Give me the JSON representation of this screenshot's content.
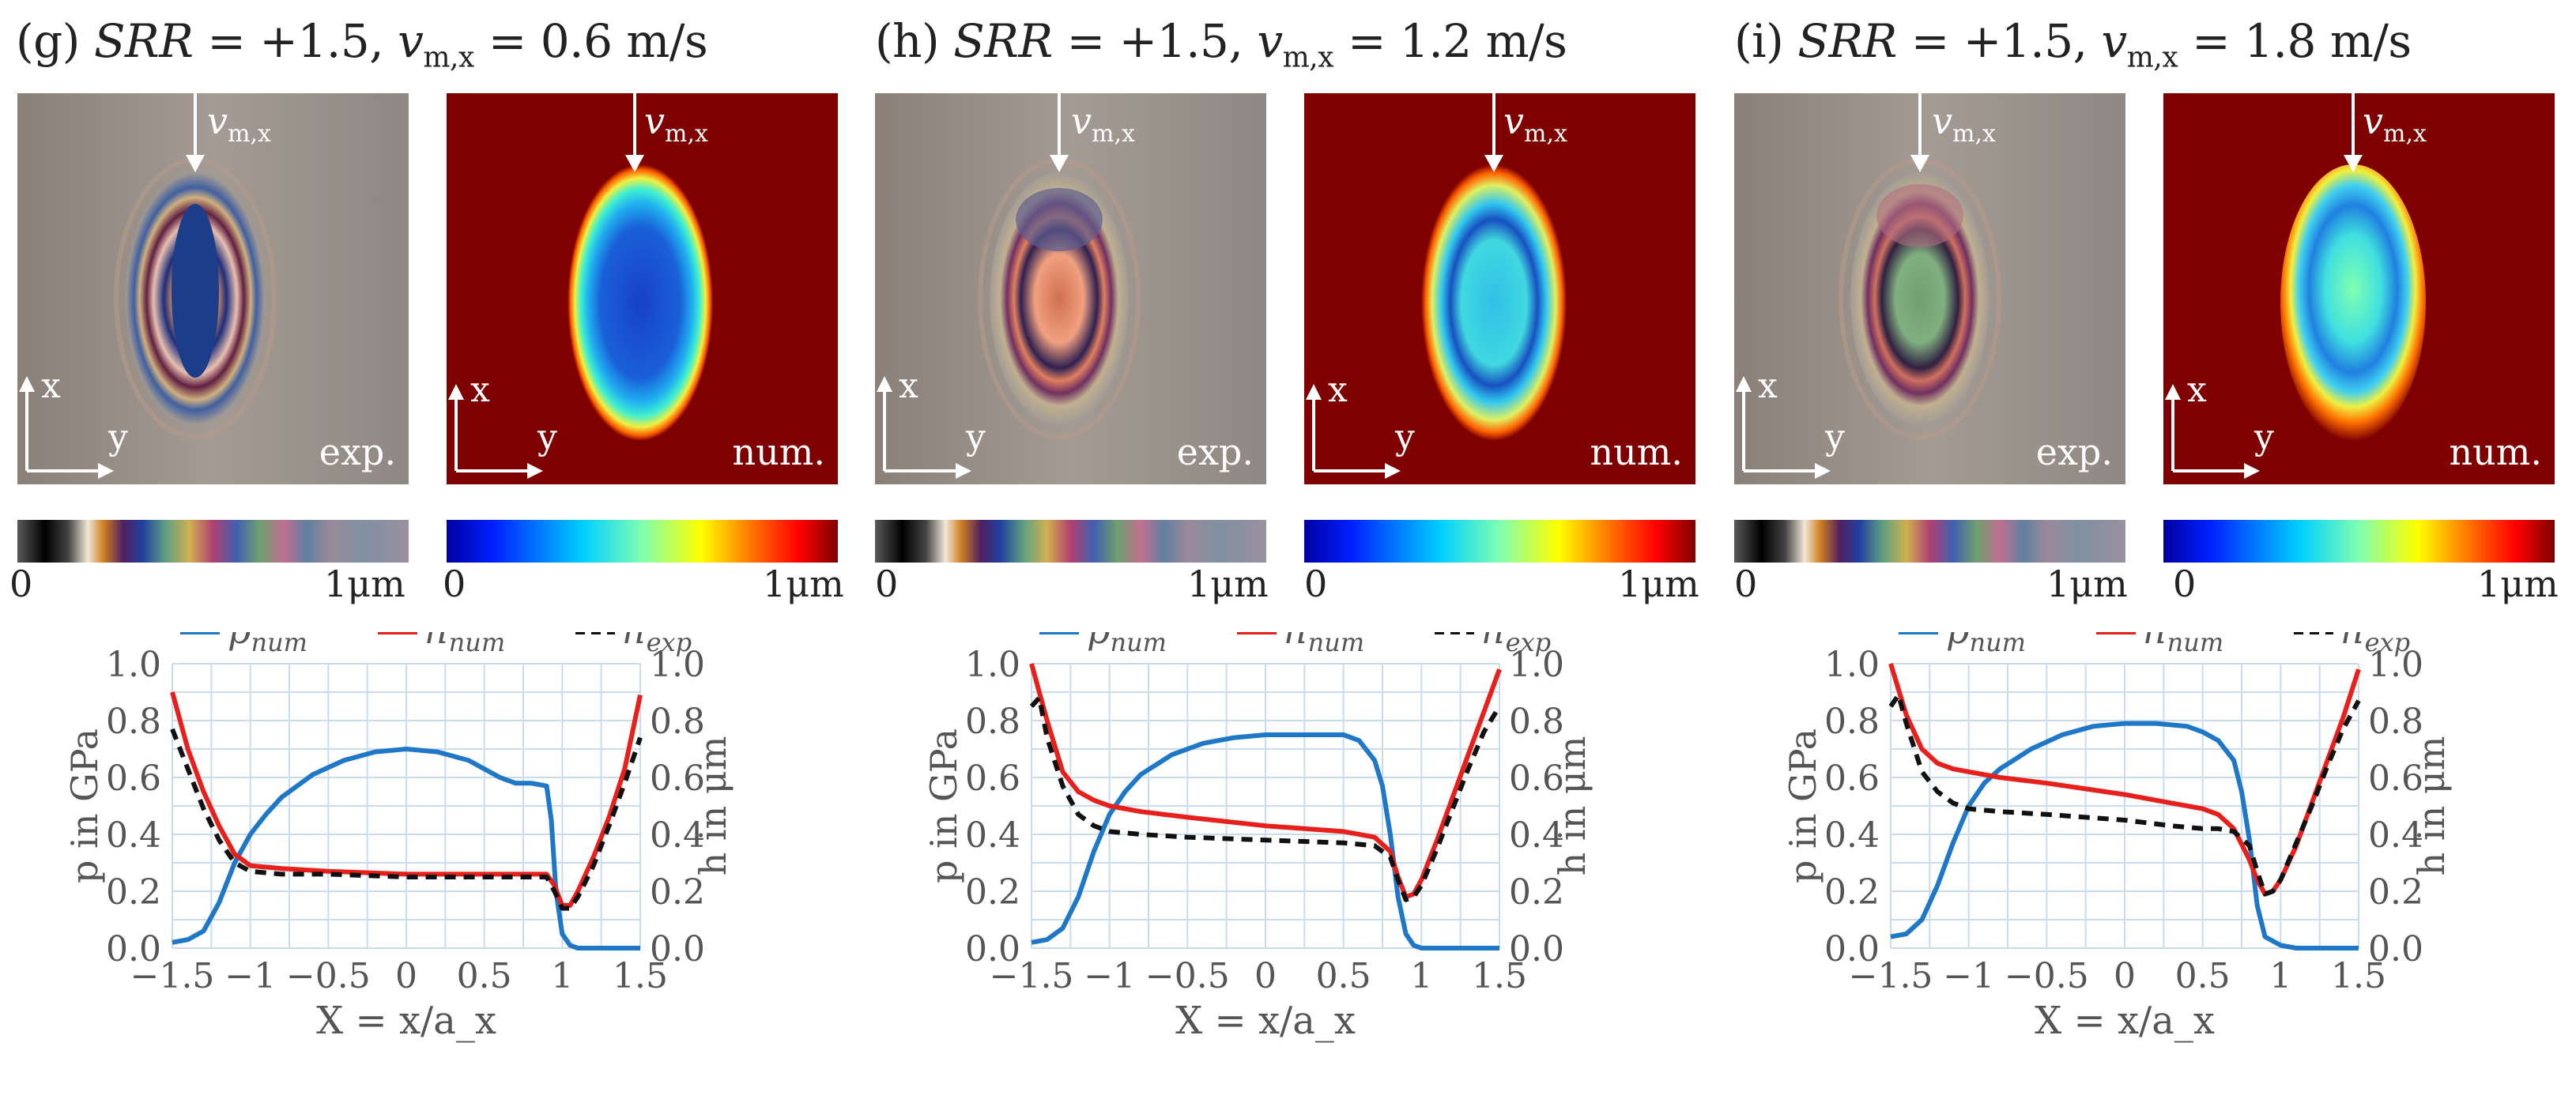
{
  "colors": {
    "p_num": "#1f77c8",
    "h_num": "#e8201c",
    "h_exp": "#111111",
    "grid": "#c9dcef",
    "axis_text": "#555555",
    "num_background": "#7f0000"
  },
  "panels": [
    {
      "title": {
        "letter": "(g)",
        "srr": "SRR",
        "eq1": "= +1.5,",
        "v": "v",
        "vsub": "m,x",
        "eq2": "= 0.6 m/s"
      },
      "exp_label": "exp.",
      "num_label": "num.",
      "arrow_label": {
        "v": "v",
        "sub": "m,x"
      },
      "axes_x": "x",
      "axes_y": "y",
      "colorbar": {
        "min": "0",
        "max": "1μm"
      }
    },
    {
      "title": {
        "letter": "(h)",
        "srr": "SRR",
        "eq1": "= +1.5,",
        "v": "v",
        "vsub": "m,x",
        "eq2": "= 1.2 m/s"
      },
      "exp_label": "exp.",
      "num_label": "num.",
      "arrow_label": {
        "v": "v",
        "sub": "m,x"
      },
      "axes_x": "x",
      "axes_y": "y",
      "colorbar": {
        "min": "0",
        "max": "1μm"
      }
    },
    {
      "title": {
        "letter": "(i)",
        "srr": "SRR",
        "eq1": "= +1.5,",
        "v": "v",
        "vsub": "m,x",
        "eq2": "= 1.8 m/s"
      },
      "exp_label": "exp.",
      "num_label": "num.",
      "arrow_label": {
        "v": "v",
        "sub": "m,x"
      },
      "axes_x": "x",
      "axes_y": "y",
      "colorbar": {
        "min": "0",
        "max": "1μm"
      }
    }
  ],
  "chart_data": [
    {
      "type": "line",
      "xlabel": "X = x/a_x",
      "ylabel_left": "p in GPa",
      "ylabel_right": "h in μm",
      "xlim": [
        -1.5,
        1.5
      ],
      "ylim": [
        0,
        1.0
      ],
      "xticks": [
        "−1.5",
        "−1",
        "−0.5",
        "0",
        "0.5",
        "1",
        "1.5"
      ],
      "yticks": [
        "0.0",
        "0.2",
        "0.4",
        "0.6",
        "0.8",
        "1.0"
      ],
      "legend": [
        "p_num",
        "h_num",
        "h_exp"
      ],
      "series": [
        {
          "name": "p_num",
          "x": [
            -1.5,
            -1.4,
            -1.3,
            -1.2,
            -1.1,
            -1.0,
            -0.9,
            -0.8,
            -0.6,
            -0.4,
            -0.2,
            0,
            0.2,
            0.4,
            0.6,
            0.7,
            0.8,
            0.9,
            0.93,
            0.96,
            1.0,
            1.05,
            1.1,
            1.2,
            1.3,
            1.5
          ],
          "y": [
            0.02,
            0.03,
            0.06,
            0.16,
            0.3,
            0.4,
            0.47,
            0.53,
            0.61,
            0.66,
            0.69,
            0.7,
            0.69,
            0.66,
            0.6,
            0.58,
            0.58,
            0.57,
            0.45,
            0.2,
            0.05,
            0.01,
            0,
            0,
            0,
            0
          ]
        },
        {
          "name": "h_num",
          "x": [
            -1.5,
            -1.4,
            -1.3,
            -1.2,
            -1.1,
            -1.0,
            -0.8,
            -0.5,
            0,
            0.5,
            0.8,
            0.9,
            0.95,
            1.0,
            1.05,
            1.1,
            1.2,
            1.3,
            1.4,
            1.5
          ],
          "y": [
            0.9,
            0.7,
            0.55,
            0.43,
            0.33,
            0.29,
            0.28,
            0.27,
            0.26,
            0.26,
            0.26,
            0.26,
            0.22,
            0.15,
            0.15,
            0.2,
            0.32,
            0.46,
            0.63,
            0.89
          ]
        },
        {
          "name": "h_exp",
          "x": [
            -1.5,
            -1.4,
            -1.3,
            -1.2,
            -1.1,
            -1.0,
            -0.8,
            -0.5,
            0,
            0.5,
            0.8,
            0.9,
            0.95,
            1.0,
            1.05,
            1.1,
            1.2,
            1.3,
            1.4,
            1.5
          ],
          "y": [
            0.77,
            0.63,
            0.49,
            0.38,
            0.3,
            0.27,
            0.26,
            0.26,
            0.25,
            0.25,
            0.25,
            0.25,
            0.2,
            0.14,
            0.14,
            0.18,
            0.29,
            0.43,
            0.58,
            0.74
          ]
        }
      ]
    },
    {
      "type": "line",
      "xlabel": "X = x/a_x",
      "ylabel_left": "p in GPa",
      "ylabel_right": "h in μm",
      "xlim": [
        -1.5,
        1.5
      ],
      "ylim": [
        0,
        1.0
      ],
      "xticks": [
        "−1.5",
        "−1",
        "−0.5",
        "0",
        "0.5",
        "1",
        "1.5"
      ],
      "yticks": [
        "0.0",
        "0.2",
        "0.4",
        "0.6",
        "0.8",
        "1.0"
      ],
      "legend": [
        "p_num",
        "h_num",
        "h_exp"
      ],
      "series": [
        {
          "name": "p_num",
          "x": [
            -1.5,
            -1.4,
            -1.3,
            -1.2,
            -1.1,
            -1.0,
            -0.9,
            -0.8,
            -0.6,
            -0.4,
            -0.2,
            0,
            0.2,
            0.4,
            0.5,
            0.6,
            0.7,
            0.75,
            0.8,
            0.85,
            0.9,
            0.95,
            1.0,
            1.1,
            1.2,
            1.5
          ],
          "y": [
            0.02,
            0.03,
            0.07,
            0.18,
            0.34,
            0.47,
            0.55,
            0.61,
            0.68,
            0.72,
            0.74,
            0.75,
            0.75,
            0.75,
            0.75,
            0.73,
            0.66,
            0.57,
            0.4,
            0.18,
            0.05,
            0.01,
            0,
            0,
            0,
            0
          ]
        },
        {
          "name": "h_num",
          "x": [
            -1.5,
            -1.4,
            -1.3,
            -1.2,
            -1.1,
            -1.0,
            -0.8,
            -0.5,
            0,
            0.5,
            0.7,
            0.8,
            0.85,
            0.9,
            0.95,
            1.0,
            1.1,
            1.2,
            1.3,
            1.4,
            1.5
          ],
          "y": [
            1.0,
            0.8,
            0.62,
            0.55,
            0.52,
            0.5,
            0.48,
            0.46,
            0.43,
            0.41,
            0.39,
            0.34,
            0.25,
            0.18,
            0.19,
            0.24,
            0.38,
            0.53,
            0.68,
            0.83,
            0.98
          ]
        },
        {
          "name": "h_exp",
          "x": [
            -1.5,
            -1.45,
            -1.4,
            -1.3,
            -1.2,
            -1.1,
            -1.0,
            -0.8,
            -0.5,
            0,
            0.5,
            0.7,
            0.8,
            0.85,
            0.9,
            0.95,
            1.0,
            1.1,
            1.2,
            1.3,
            1.4,
            1.5
          ],
          "y": [
            0.85,
            0.88,
            0.74,
            0.57,
            0.47,
            0.43,
            0.41,
            0.4,
            0.39,
            0.38,
            0.37,
            0.36,
            0.32,
            0.24,
            0.17,
            0.18,
            0.22,
            0.35,
            0.49,
            0.63,
            0.76,
            0.85
          ]
        }
      ]
    },
    {
      "type": "line",
      "xlabel": "X = x/a_x",
      "ylabel_left": "p in GPa",
      "ylabel_right": "h in μm",
      "xlim": [
        -1.5,
        1.5
      ],
      "ylim": [
        0,
        1.0
      ],
      "xticks": [
        "−1.5",
        "−1",
        "−0.5",
        "0",
        "0.5",
        "1",
        "1.5"
      ],
      "yticks": [
        "0.0",
        "0.2",
        "0.4",
        "0.6",
        "0.8",
        "1.0"
      ],
      "legend": [
        "p_num",
        "h_num",
        "h_exp"
      ],
      "series": [
        {
          "name": "p_num",
          "x": [
            -1.5,
            -1.4,
            -1.3,
            -1.2,
            -1.1,
            -1.0,
            -0.9,
            -0.8,
            -0.6,
            -0.4,
            -0.2,
            0,
            0.2,
            0.4,
            0.5,
            0.6,
            0.7,
            0.75,
            0.8,
            0.85,
            0.9,
            1.0,
            1.1,
            1.2,
            1.5
          ],
          "y": [
            0.04,
            0.05,
            0.1,
            0.22,
            0.37,
            0.5,
            0.58,
            0.63,
            0.7,
            0.75,
            0.78,
            0.79,
            0.79,
            0.78,
            0.76,
            0.73,
            0.66,
            0.55,
            0.38,
            0.15,
            0.04,
            0.01,
            0,
            0,
            0
          ]
        },
        {
          "name": "h_num",
          "x": [
            -1.5,
            -1.4,
            -1.3,
            -1.2,
            -1.1,
            -1.0,
            -0.8,
            -0.5,
            0,
            0.3,
            0.5,
            0.6,
            0.7,
            0.8,
            0.85,
            0.9,
            0.95,
            1.0,
            1.1,
            1.2,
            1.3,
            1.4,
            1.5
          ],
          "y": [
            1.0,
            0.82,
            0.7,
            0.65,
            0.63,
            0.62,
            0.6,
            0.58,
            0.54,
            0.51,
            0.49,
            0.47,
            0.42,
            0.31,
            0.24,
            0.19,
            0.2,
            0.24,
            0.36,
            0.51,
            0.66,
            0.81,
            0.98
          ]
        },
        {
          "name": "h_exp",
          "x": [
            -1.5,
            -1.45,
            -1.4,
            -1.3,
            -1.2,
            -1.1,
            -1.0,
            -0.8,
            -0.5,
            0,
            0.3,
            0.5,
            0.6,
            0.7,
            0.8,
            0.85,
            0.9,
            0.95,
            1.0,
            1.1,
            1.2,
            1.3,
            1.4,
            1.5
          ],
          "y": [
            0.85,
            0.89,
            0.79,
            0.62,
            0.55,
            0.51,
            0.49,
            0.48,
            0.47,
            0.45,
            0.43,
            0.42,
            0.42,
            0.41,
            0.36,
            0.27,
            0.19,
            0.2,
            0.24,
            0.37,
            0.5,
            0.64,
            0.77,
            0.87
          ]
        }
      ]
    }
  ]
}
